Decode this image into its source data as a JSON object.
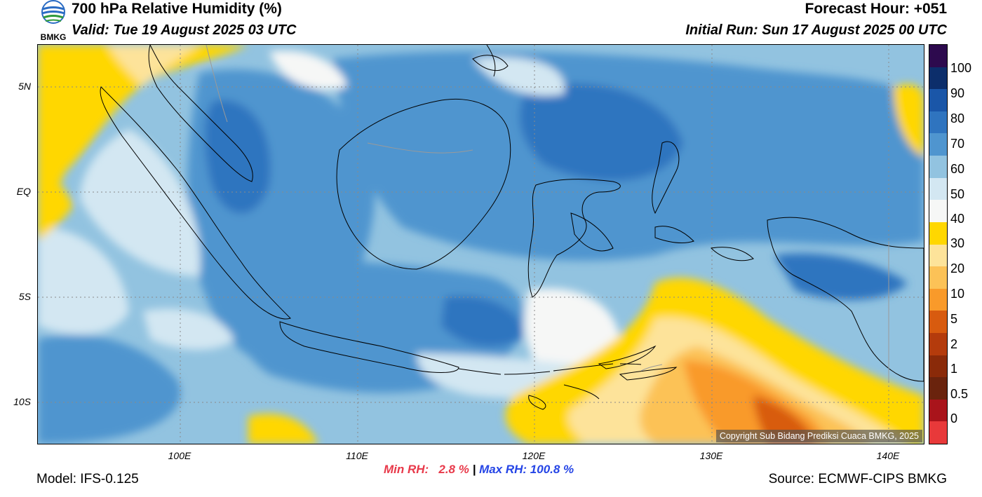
{
  "header": {
    "title": "700 hPa Relative Humidity (%)",
    "valid": "Valid: Tue 19 August 2025 03 UTC",
    "forecast_hour": "Forecast Hour: +051",
    "initial_run": "Initial Run: Sun 17 August 2025 00 UTC"
  },
  "logo": {
    "text": "BMKG",
    "icon": "bmkg-logo-icon"
  },
  "map": {
    "lat_labels": [
      "5N",
      "EQ",
      "5S",
      "10S"
    ],
    "lon_labels": [
      "100E",
      "110E",
      "120E",
      "130E",
      "140E"
    ],
    "copyright": "Copyright Sub Bidang Prediksi Cuaca BMKG, 2025"
  },
  "colorbar": {
    "labels": [
      "100",
      "90",
      "80",
      "70",
      "60",
      "50",
      "40",
      "30",
      "20",
      "10",
      "5",
      "2",
      "1",
      "0.5",
      "0"
    ],
    "colors_top_to_bottom": [
      "#2d0a4e",
      "#0c2e6b",
      "#1a56a8",
      "#2f74bf",
      "#4f95cf",
      "#92c3e0",
      "#d3e7f2",
      "#f6f7f6",
      "#ffd700",
      "#fde39a",
      "#fcc257",
      "#f99a2a",
      "#d85b0f",
      "#b43b0c",
      "#8a2a09",
      "#6a230d",
      "#a9141b",
      "#e8393a"
    ]
  },
  "stats": {
    "min_rh": "Min RH:   2.8 %",
    "separator": " | ",
    "max_rh": "Max RH: 100.8 %"
  },
  "footer": {
    "model": "Model: IFS-0.125",
    "source": "Source: ECMWF-CIPS BMKG"
  }
}
